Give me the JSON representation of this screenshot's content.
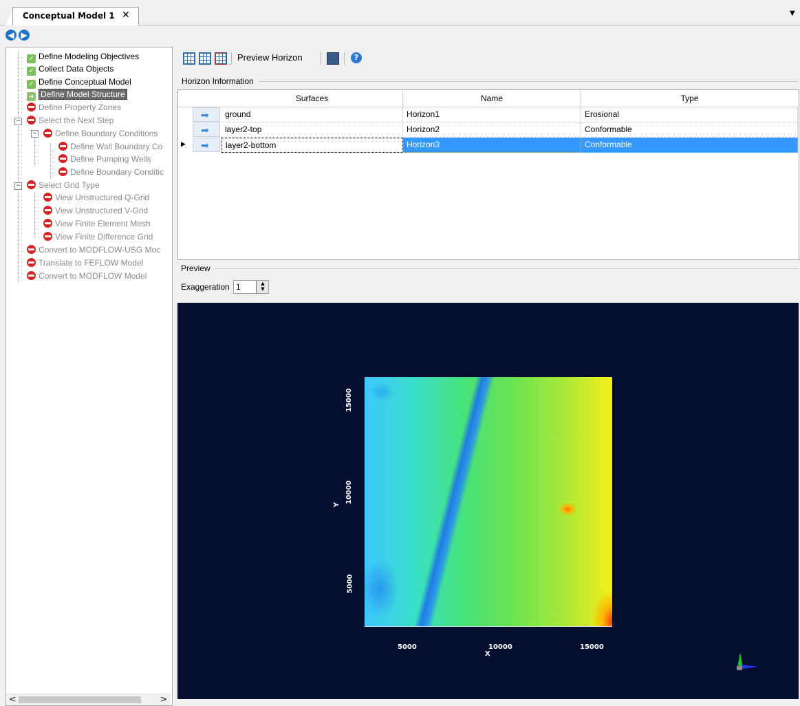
{
  "tab": {
    "title": "Conceptual Model 1",
    "close": "✕"
  },
  "nav": {
    "back": "◀",
    "forward": "▶"
  },
  "tree": {
    "items": [
      {
        "label": "Define Modeling Objectives",
        "status": "done"
      },
      {
        "label": "Collect Data Objects",
        "status": "done"
      },
      {
        "label": "Define  Conceptual Model",
        "status": "done"
      },
      {
        "label": "Define  Model Structure",
        "status": "current"
      },
      {
        "label": "Define  Property Zones",
        "status": "blocked"
      },
      {
        "label": "Select the Next Step",
        "status": "blocked"
      },
      {
        "label": "Define Boundary Conditions",
        "status": "blocked"
      },
      {
        "label": "Define Wall Boundary Co",
        "status": "blocked"
      },
      {
        "label": "Define Pumping Wells",
        "status": "blocked"
      },
      {
        "label": "Define Boundary Conditic",
        "status": "blocked"
      },
      {
        "label": "Select Grid Type",
        "status": "blocked"
      },
      {
        "label": "View Unstructured Q-Grid",
        "status": "blocked"
      },
      {
        "label": "View Unstructured V-Grid",
        "status": "blocked"
      },
      {
        "label": "View Finite Element Mesh",
        "status": "blocked"
      },
      {
        "label": "View Finite Difference Grid",
        "status": "blocked"
      },
      {
        "label": "Convert to MODFLOW-USG Moc",
        "status": "blocked"
      },
      {
        "label": "Translate to FEFLOW Model",
        "status": "blocked"
      },
      {
        "label": "Convert to MODFLOW Model",
        "status": "blocked"
      }
    ],
    "scroll_left": "<",
    "scroll_right": ">"
  },
  "toolbar": {
    "preview_label": "Preview Horizon",
    "help": "?"
  },
  "horizon": {
    "group_title": "Horizon Information",
    "columns": [
      "Surfaces",
      "Name",
      "Type"
    ],
    "rows": [
      {
        "surface": "ground",
        "name": "Horizon1",
        "type": "Erosional"
      },
      {
        "surface": "layer2-top",
        "name": "Horizon2",
        "type": "Conformable"
      },
      {
        "surface": "layer2-bottom",
        "name": "Horizon3",
        "type": "Conformable"
      }
    ],
    "selected_row": 2
  },
  "preview": {
    "group_title": "Preview",
    "exaggeration_label": "Exaggeration",
    "exaggeration_value": "1",
    "x_axis_label": "X",
    "y_axis_label": "Y",
    "x_ticks": [
      "5000",
      "10000",
      "15000"
    ],
    "y_ticks": [
      "5000",
      "10000",
      "15000"
    ]
  },
  "colors": {
    "viewer_bg": "#050e2e",
    "selection": "#3399ff"
  }
}
